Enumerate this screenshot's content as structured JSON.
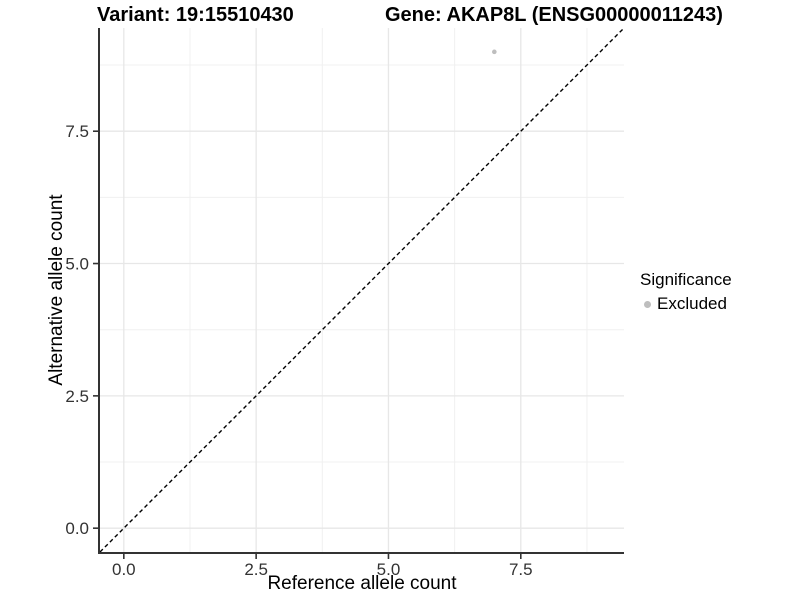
{
  "titles": {
    "variant": "Variant: 19:15510430",
    "gene": "Gene: AKAP8L (ENSG00000011243)"
  },
  "legend": {
    "title": "Significance",
    "items": [
      {
        "label": "Excluded",
        "color": "#bebebe",
        "marker": "circle"
      }
    ]
  },
  "chart_data": {
    "type": "scatter",
    "title_left": "Variant: 19:15510430",
    "title_right": "Gene: AKAP8L (ENSG00000011243)",
    "xlabel": "Reference allele count",
    "ylabel": "Alternative allele count",
    "x_ticks": [
      0,
      2.5,
      5,
      7.5
    ],
    "x_tick_labels": [
      "0.0",
      "2.5",
      "5.0",
      "7.5"
    ],
    "y_ticks": [
      0,
      2.5,
      5,
      7.5
    ],
    "y_tick_labels": [
      "0.0",
      "2.5",
      "5.0",
      "7.5"
    ],
    "x_minor_ticks": [
      1.25,
      3.75,
      6.25,
      8.75
    ],
    "y_minor_ticks": [
      1.25,
      3.75,
      6.25,
      8.75
    ],
    "xlim": [
      -0.45,
      9.45
    ],
    "ylim": [
      -0.45,
      9.45
    ],
    "grid": true,
    "legend_position": "right",
    "series": [
      {
        "name": "Excluded",
        "color": "#bebebe",
        "points": [
          {
            "x": 7,
            "y": 9
          }
        ]
      }
    ],
    "reference_line": {
      "slope": 1,
      "intercept": 0,
      "style": "dashed",
      "color": "#000000"
    }
  },
  "styles": {
    "point_color": "#bebebe",
    "grid_major_color": "#e7e7e7",
    "grid_minor_color": "#f0f0f0",
    "axis_line_color": "#333333",
    "tick_label_color": "#333333",
    "dashed_line_color": "#000000"
  }
}
